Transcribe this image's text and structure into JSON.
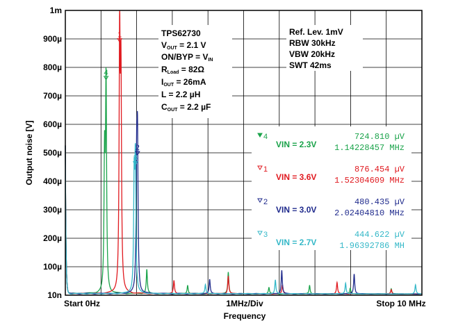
{
  "chart_data": {
    "type": "line",
    "title": "",
    "xlabel": "Frequency",
    "ylabel": "Output noise [V]",
    "x_ticks": {
      "start": "Start 0Hz",
      "mid": "1MHz/Div",
      "stop": "Stop 10 MHz"
    },
    "xlim": [
      0,
      10
    ],
    "x_unit": "MHz",
    "y_ticks": [
      {
        "label": "1m",
        "value": 1000
      },
      {
        "label": "900µ",
        "value": 900
      },
      {
        "label": "800µ",
        "value": 800
      },
      {
        "label": "700µ",
        "value": 700
      },
      {
        "label": "600µ",
        "value": 600
      },
      {
        "label": "500µ",
        "value": 500
      },
      {
        "label": "400µ",
        "value": 400
      },
      {
        "label": "300µ",
        "value": 300
      },
      {
        "label": "200µ",
        "value": 200
      },
      {
        "label": "100µ",
        "value": 100
      },
      {
        "label": "10n",
        "value": 0
      }
    ],
    "ylim": [
      0,
      1000
    ],
    "y_unit": "µV",
    "grid": true,
    "conditions": [
      "TPS62730",
      "VOUT = 2.1 V",
      "ON/BYP = VIN",
      "RLoad = 82Ω",
      "IOUT = 26mA",
      "L = 2.2 µH",
      "COUT = 2.2 µF"
    ],
    "settings": [
      "Ref. Lev. 1mV",
      "RBW 30kHz",
      "VBW 20kHz",
      "SWT 42ms"
    ],
    "markers": [
      {
        "num": "4",
        "label": "VIN = 2.3V",
        "value": "724.810 µV",
        "freq": "1.14228457 MHz",
        "x": 1.142,
        "y": 724.8,
        "color": "#1aa34a"
      },
      {
        "num": "1",
        "label": "VIN = 3.6V",
        "value": "876.454 µV",
        "freq": "1.52304609 MHz",
        "x": 1.523,
        "y": 876.5,
        "color": "#e0191f"
      },
      {
        "num": "2",
        "label": "VIN = 3.0V",
        "value": "480.435 µV",
        "freq": "2.02404810 MHz",
        "x": 2.024,
        "y": 480.4,
        "color": "#1f2a8c"
      },
      {
        "num": "3",
        "label": "VIN = 2.7V",
        "value": "444.622 µV",
        "freq": "1.96392786 MH",
        "x": 1.964,
        "y": 444.6,
        "color": "#35b8c8"
      }
    ],
    "series": [
      {
        "name": "VIN = 2.3V",
        "color": "#1aa34a",
        "peaks": [
          [
            1.142,
            725
          ],
          [
            1.1,
            460
          ],
          [
            2.285,
            85
          ],
          [
            3.43,
            30
          ],
          [
            4.57,
            75
          ],
          [
            5.71,
            22
          ],
          [
            6.85,
            30
          ],
          [
            7.99,
            20
          ],
          [
            9.14,
            18
          ]
        ]
      },
      {
        "name": "VIN = 3.6V",
        "color": "#e0191f",
        "peaks": [
          [
            1.523,
            876
          ],
          [
            1.56,
            720
          ],
          [
            3.046,
            45
          ],
          [
            4.57,
            62
          ],
          [
            6.09,
            30
          ],
          [
            7.62,
            40
          ],
          [
            9.14,
            15
          ]
        ]
      },
      {
        "name": "VIN = 3.0V",
        "color": "#1f2a8c",
        "peaks": [
          [
            2.024,
            480
          ],
          [
            2.0,
            410
          ],
          [
            4.048,
            50
          ],
          [
            6.07,
            82
          ],
          [
            8.1,
            70
          ]
        ]
      },
      {
        "name": "VIN = 2.7V",
        "color": "#35b8c8",
        "peaks": [
          [
            1.964,
            445
          ],
          [
            1.93,
            380
          ],
          [
            3.928,
            32
          ],
          [
            5.89,
            48
          ],
          [
            7.86,
            38
          ],
          [
            9.82,
            32
          ]
        ]
      }
    ]
  }
}
